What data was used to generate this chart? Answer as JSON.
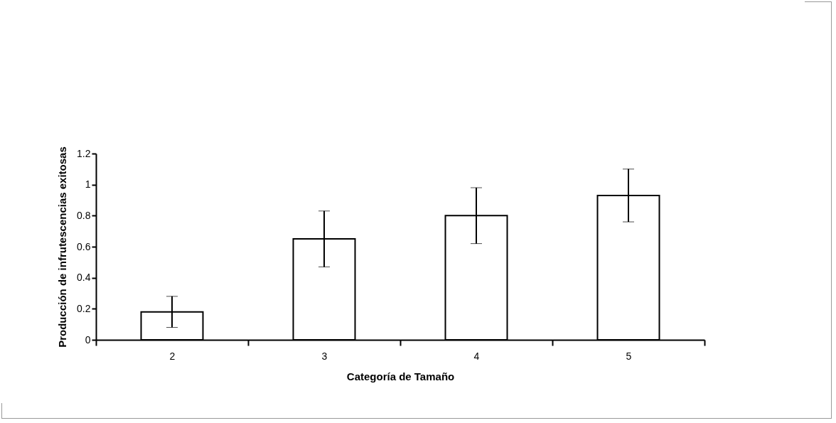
{
  "chart_data": {
    "type": "bar",
    "xlabel": "Categoría de Tamaño",
    "ylabel": "Producción de infrutescencias exitosas",
    "categories": [
      "2",
      "3",
      "4",
      "5"
    ],
    "values": [
      0.18,
      0.65,
      0.8,
      0.93
    ],
    "errors": [
      [
        0.08,
        0.28
      ],
      [
        0.47,
        0.83
      ],
      [
        0.62,
        0.98
      ],
      [
        0.76,
        1.1
      ]
    ],
    "color": "#ffffff",
    "ylim": [
      0,
      1.2
    ],
    "yticks": [
      0,
      0.2,
      0.4,
      0.6,
      0.8,
      1,
      1.2
    ],
    "grid": false
  }
}
